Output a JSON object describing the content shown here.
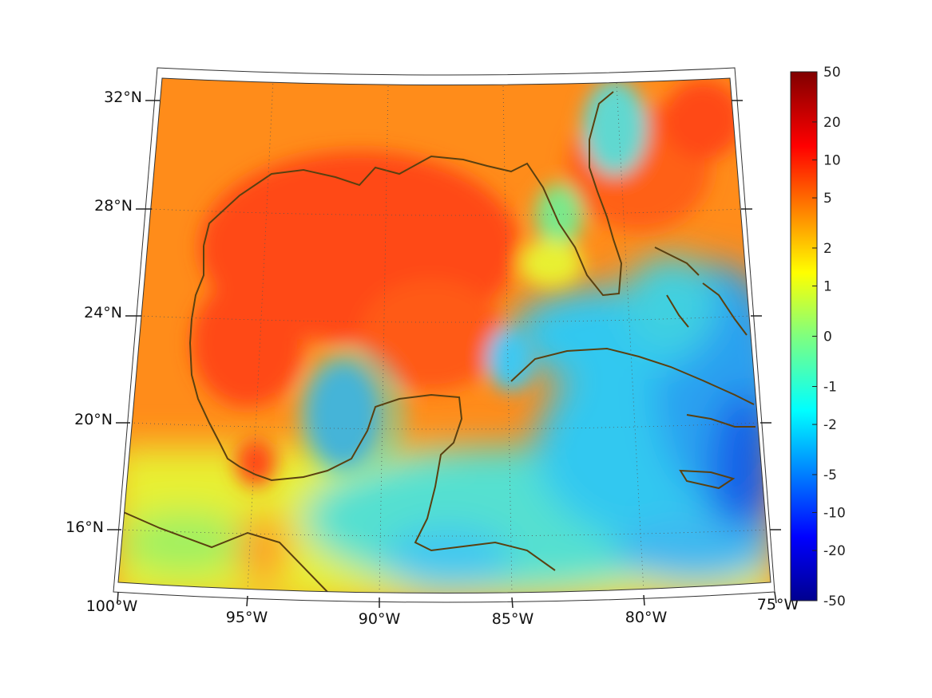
{
  "map": {
    "lon_labels": [
      "100°W",
      "95°W",
      "90°W",
      "85°W",
      "80°W",
      "75°W"
    ],
    "lat_labels": [
      "32°N",
      "28°N",
      "24°N",
      "20°N",
      "16°N"
    ],
    "extent": {
      "lon": [
        -100,
        -75
      ],
      "lat": [
        14,
        33
      ]
    },
    "coastline_color": "#5a4010",
    "grid": "dotted"
  },
  "colorbar": {
    "ticks": [
      "50",
      "20",
      "10",
      "5",
      "2",
      "1",
      "0",
      "-1",
      "-2",
      "-5",
      "-10",
      "-20",
      "-50"
    ],
    "colormap": "jet",
    "range": [
      -50,
      50
    ],
    "scale": "symlog"
  }
}
